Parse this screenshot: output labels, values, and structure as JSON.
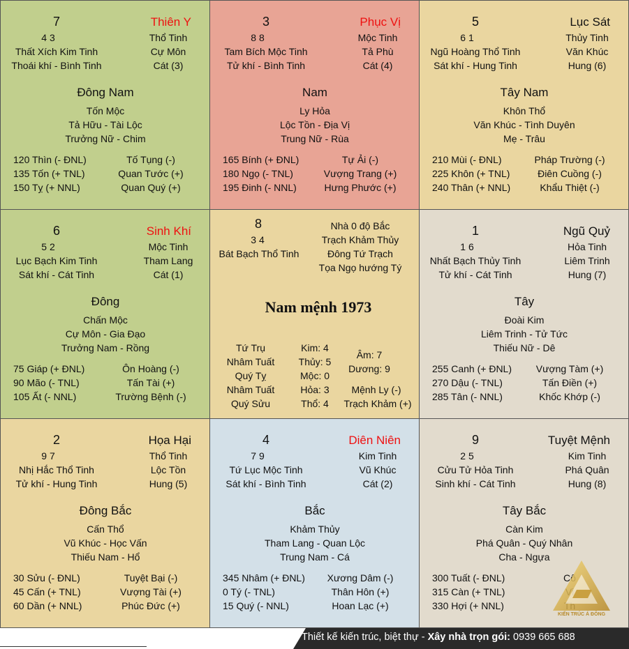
{
  "colors": {
    "se": "#c1cf8d",
    "s": "#e8a495",
    "sw": "#ead6a0",
    "e": "#c1cf8d",
    "center": "#ead6a0",
    "w": "#e2dbcd",
    "ne": "#ead6a0",
    "n": "#d3e0e8",
    "nw": "#e2dbcd",
    "accent": "#e11111"
  },
  "cells": {
    "se": {
      "num": "7",
      "stars": "4   3",
      "gua": "Thiên Y",
      "r1": "Thổ Tinh",
      "r2": "Cự Môn",
      "r3": "Cát (3)",
      "l1": "Thất Xích Kim Tinh",
      "l2": "Thoái khí - Bình Tinh",
      "dir": "Đông Nam",
      "elem": "Tốn Mộc",
      "m1": "Tả Hữu - Tài Lộc",
      "m2": "Trưởng Nữ - Chim",
      "b1": "120 Thìn (- ĐNL)",
      "b2": "135 Tốn (+ TNL)",
      "b3": "150 Tỵ (+ NNL)",
      "s1": "Tố Tụng (-)",
      "s2": "Quan Tước (+)",
      "s3": "Quan Quý (+)"
    },
    "s": {
      "num": "3",
      "stars": "8   8",
      "gua": "Phục Vị",
      "r1": "Mộc Tinh",
      "r2": "Tả Phù",
      "r3": "Cát (4)",
      "l1": "Tam Bích Mộc Tinh",
      "l2": "Tử khí - Bình Tinh",
      "dir": "Nam",
      "elem": "Ly Hỏa",
      "m1": "Lộc Tồn - Địa Vị",
      "m2": "Trung Nữ - Rùa",
      "b1": "165 Bính (+ ĐNL)",
      "b2": "180 Ngọ (- TNL)",
      "b3": "195 Đinh (- NNL)",
      "s1": "Tự Ải (-)",
      "s2": "Vượng Trang (+)",
      "s3": "Hưng Phước (+)"
    },
    "sw": {
      "num": "5",
      "stars": "6   1",
      "gua": "Lục Sát",
      "r1": "Thủy Tinh",
      "r2": "Văn Khúc",
      "r3": "Hung (6)",
      "l1": "Ngũ Hoàng Thổ Tinh",
      "l2": "Sát khí - Hung Tinh",
      "dir": "Tây Nam",
      "elem": "Khôn Thổ",
      "m1": "Văn Khúc - Tình Duyên",
      "m2": "Mẹ - Trâu",
      "b1": "210 Mùi (- ĐNL)",
      "b2": "225 Khôn (+ TNL)",
      "b3": "240 Thân (+ NNL)",
      "s1": "Pháp Trường (-)",
      "s2": "Điên Cuồng (-)",
      "s3": "Khẩu Thiệt (-)"
    },
    "e": {
      "num": "6",
      "stars": "5   2",
      "gua": "Sinh Khí",
      "r1": "Mộc Tinh",
      "r2": "Tham Lang",
      "r3": "Cát (1)",
      "l1": "Lục Bạch Kim Tinh",
      "l2": "Sát khí - Cát Tinh",
      "dir": "Đông",
      "elem": "Chấn Mộc",
      "m1": "Cự Môn - Gia Đạo",
      "m2": "Trưởng Nam - Rồng",
      "b1": "75 Giáp (+ ĐNL)",
      "b2": "90 Mão (- TNL)",
      "b3": "105 Ất (- NNL)",
      "s1": "Ôn Hoàng (-)",
      "s2": "Tấn Tài (+)",
      "s3": "Trường Bệnh (-)"
    },
    "w": {
      "num": "1",
      "stars": "1   6",
      "gua": "Ngũ Quỷ",
      "r1": "Hỏa Tinh",
      "r2": "Liêm Trinh",
      "r3": "Hung (7)",
      "l1": "Nhất Bạch Thủy Tinh",
      "l2": "Tử khí - Cát Tinh",
      "dir": "Tây",
      "elem": "Đoài Kim",
      "m1": "Liêm Trinh - Tử Tức",
      "m2": "Thiếu Nữ - Dê",
      "b1": "255 Canh (+ ĐNL)",
      "b2": "270 Dậu (- TNL)",
      "b3": "285 Tân (- NNL)",
      "s1": "Vượng Tàm (+)",
      "s2": "Tấn Điền (+)",
      "s3": "Khốc Khớp (-)"
    },
    "ne": {
      "num": "2",
      "stars": "9   7",
      "gua": "Họa Hại",
      "r1": "Thổ Tinh",
      "r2": "Lộc Tồn",
      "r3": "Hung (5)",
      "l1": "Nhị Hắc Thổ Tinh",
      "l2": "Tử khí - Hung Tinh",
      "dir": "Đông Bắc",
      "elem": "Cấn Thổ",
      "m1": "Vũ Khúc - Học Vấn",
      "m2": "Thiếu Nam - Hổ",
      "b1": "30 Sửu (- ĐNL)",
      "b2": "45 Cấn (+ TNL)",
      "b3": "60 Dần (+ NNL)",
      "s1": "Tuyệt Bại (-)",
      "s2": "Vượng Tài (+)",
      "s3": "Phúc Đức (+)"
    },
    "n": {
      "num": "4",
      "stars": "7   9",
      "gua": "Diên Niên",
      "r1": "Kim Tinh",
      "r2": "Vũ Khúc",
      "r3": "Cát (2)",
      "l1": "Tứ Lục Mộc Tinh",
      "l2": "Sát khí - Bình Tinh",
      "dir": "Bắc",
      "elem": "Khảm Thủy",
      "m1": "Tham Lang - Quan Lộc",
      "m2": "Trung Nam - Cá",
      "b1": "345 Nhâm (+ ĐNL)",
      "b2": "0 Tý (- TNL)",
      "b3": "15 Quý (- NNL)",
      "s1": "Xương Dâm (-)",
      "s2": "Thân Hôn (+)",
      "s3": "Hoan Lạc (+)"
    },
    "nw": {
      "num": "9",
      "stars": "2   5",
      "gua": "Tuyệt Mệnh",
      "r1": "Kim Tinh",
      "r2": "Phá Quân",
      "r3": "Hung (8)",
      "l1": "Cửu Tử Hỏa Tinh",
      "l2": "Sinh khí - Cát Tinh",
      "dir": "Tây Bắc",
      "elem": "Càn Kim",
      "m1": "Phá Quân - Quý Nhân",
      "m2": "Cha - Ngựa",
      "b1": "300 Tuất (- ĐNL)",
      "b2": "315 Càn (+ TNL)",
      "b3": "330 Hợi (+ NNL)",
      "s1": "Cô",
      "s2": "Vi",
      "s3": "Th"
    }
  },
  "center": {
    "num": "8",
    "stars": "3   4",
    "star_name": "Bát Bạch Thổ Tinh",
    "info": [
      "Nhà 0 độ Bắc",
      "Trạch Khảm Thủy",
      "Đông Tứ Trạch",
      "Tọa Ngọ hướng Tý"
    ],
    "title": "Nam mệnh 1973",
    "pillars_label": "Tứ Trụ",
    "pillars": [
      "Nhâm Tuất",
      "Quý Tỵ",
      "Nhâm Tuất",
      "Quý Sửu"
    ],
    "elements": [
      "Kim: 4",
      "Thủy: 5",
      "Mộc: 0",
      "Hỏa: 3",
      "Thổ: 4"
    ],
    "yin": "Âm: 7",
    "yang": "Dương: 9",
    "menh": "Mệnh Ly (-)",
    "trach": "Trạch Khảm (+)"
  },
  "footer": {
    "left": "Thiết kế kiến trúc, biệt thự - ",
    "bold": "Xây nhà trọn gói:",
    "phone": " 0939 665 688"
  },
  "logo": {
    "text": "KIẾN TRÚC Á ĐÔNG",
    "icon": "triangle-logo-icon"
  }
}
